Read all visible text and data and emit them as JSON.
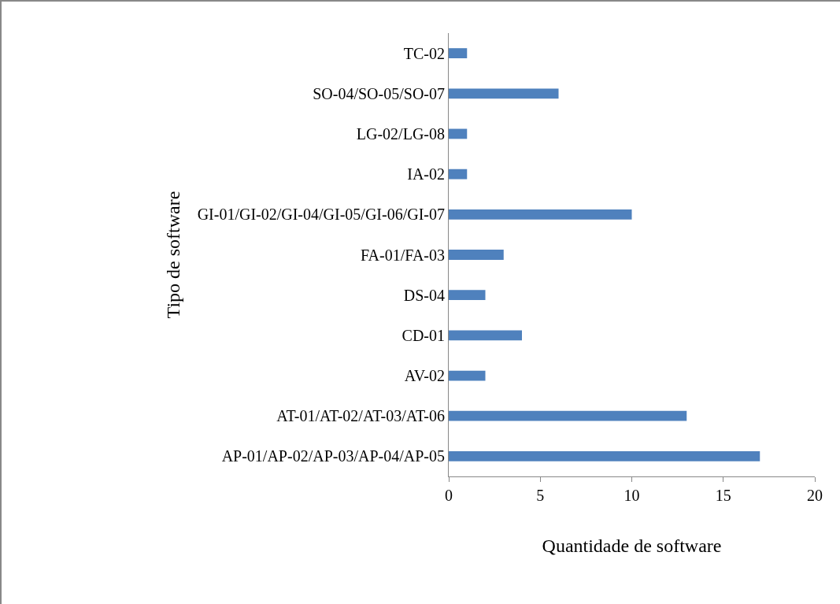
{
  "chart_data": {
    "type": "bar",
    "orientation": "horizontal",
    "xlabel": "Quantidade de software",
    "ylabel": "Tipo de software",
    "categories": [
      "TC-02",
      "SO-04/SO-05/SO-07",
      "LG-02/LG-08",
      "IA-02",
      "GI-01/GI-02/GI-04/GI-05/GI-06/GI-07",
      "FA-01/FA-03",
      "DS-04",
      "CD-01",
      "AV-02",
      "AT-01/AT-02/AT-03/AT-06",
      "AP-01/AP-02/AP-03/AP-04/AP-05"
    ],
    "values": [
      1,
      6,
      1,
      1,
      10,
      3,
      2,
      4,
      2,
      13,
      17
    ],
    "color": "#4f81bd",
    "xlim": [
      0,
      20
    ],
    "xticks": [
      0,
      5,
      10,
      15,
      20
    ],
    "grid": false
  }
}
